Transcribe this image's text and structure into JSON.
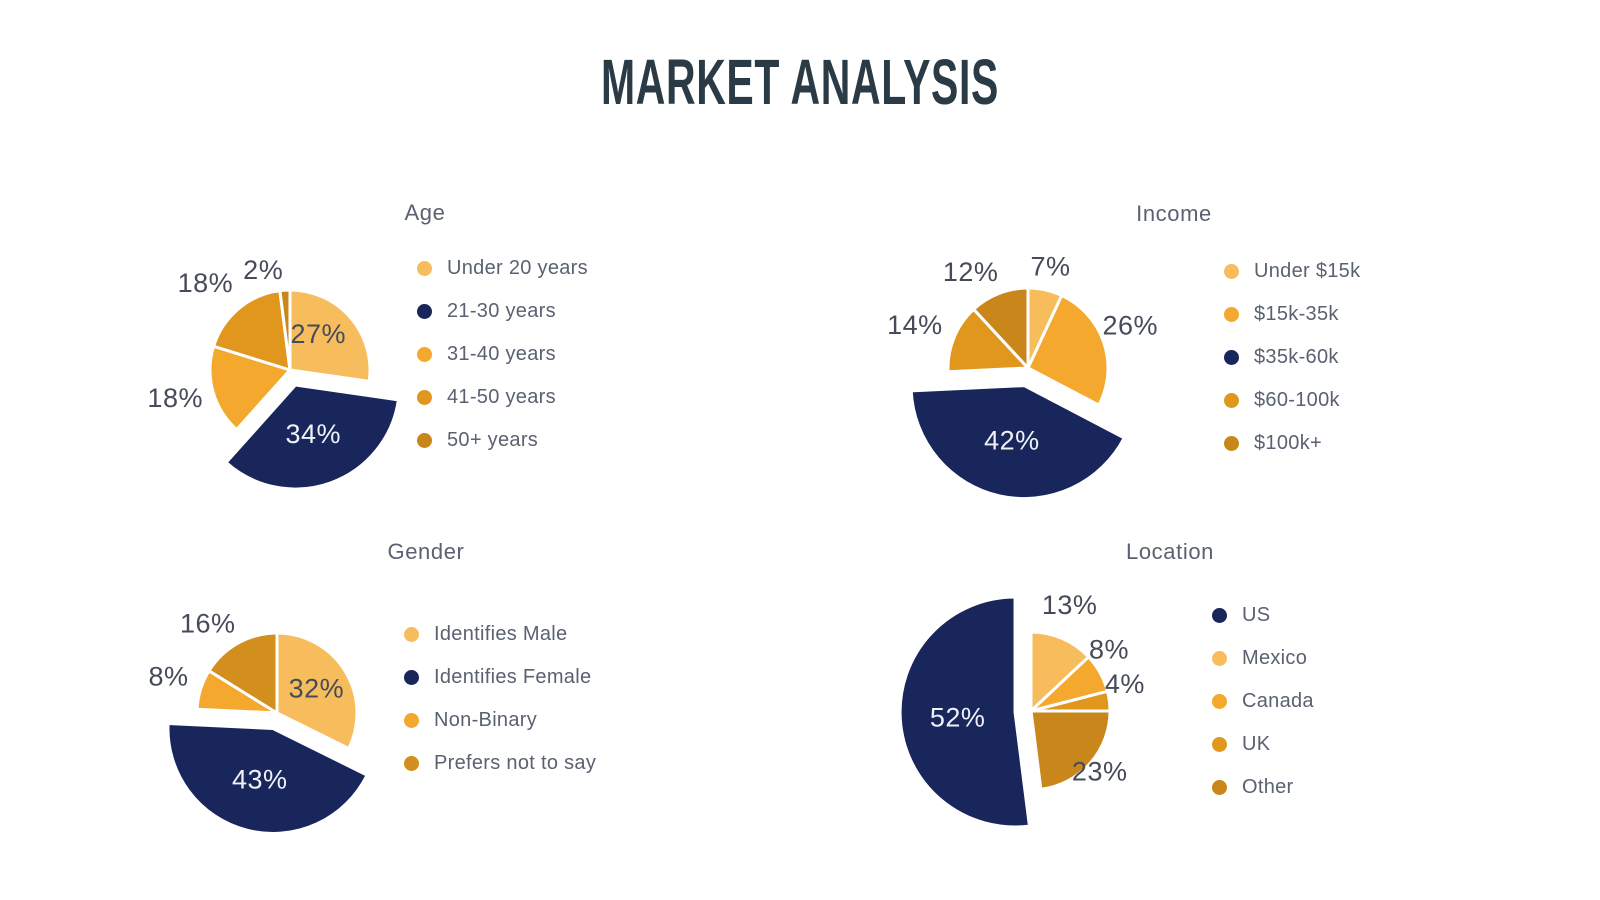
{
  "page_title": "MARKET ANALYSIS",
  "colors": {
    "navy": "#18265C",
    "amber_light": "#F7BD5C",
    "amber": "#F4A82D",
    "gold": "#E1971D",
    "gold_dark": "#C8861B",
    "title_text": "#2B3B46",
    "label_text": "#454B59",
    "muted_text": "#5A6170",
    "background": "#FFFFFF"
  },
  "chart_data": [
    {
      "id": "age",
      "type": "pie",
      "title": "Age",
      "categories": [
        "Under 20 years",
        "21-30 years",
        "31-40 years",
        "41-50 years",
        "50+ years"
      ],
      "values": [
        27,
        34,
        18,
        18,
        2
      ],
      "labels": [
        "27%",
        "34%",
        "18%",
        "18%",
        "2%"
      ],
      "colors": [
        "#F7BD5C",
        "#18265C",
        "#F4A82D",
        "#E1971D",
        "#C8861B"
      ],
      "legend_order": [
        0,
        1,
        2,
        3,
        4
      ],
      "emphasized_index": 1,
      "legend_position": "right",
      "start_angle_deg": 0,
      "direction": "clockwise"
    },
    {
      "id": "income",
      "type": "pie",
      "title": "Income",
      "categories": [
        "Under $15k",
        "$15k-35k",
        "$35k-60k",
        "$60-100k",
        "$100k+"
      ],
      "values": [
        7,
        26,
        42,
        14,
        12
      ],
      "labels": [
        "7%",
        "26%",
        "42%",
        "14%",
        "12%"
      ],
      "colors": [
        "#F7BD5C",
        "#F4A82D",
        "#18265C",
        "#E1971D",
        "#C8861B"
      ],
      "legend_order": [
        0,
        1,
        2,
        3,
        4
      ],
      "emphasized_index": 2,
      "legend_position": "right",
      "start_angle_deg": 0,
      "direction": "clockwise"
    },
    {
      "id": "gender",
      "type": "pie",
      "title": "Gender",
      "categories": [
        "Identifies Male",
        "Identifies Female",
        "Non-Binary",
        "Prefers not to say"
      ],
      "values": [
        32,
        43,
        8,
        16
      ],
      "labels": [
        "32%",
        "43%",
        "8%",
        "16%"
      ],
      "colors": [
        "#F7BD5C",
        "#18265C",
        "#F4A82D",
        "#D28F1D"
      ],
      "legend_order": [
        0,
        1,
        2,
        3
      ],
      "emphasized_index": 1,
      "legend_position": "right",
      "start_angle_deg": 0,
      "direction": "clockwise"
    },
    {
      "id": "location",
      "type": "pie",
      "title": "Location",
      "categories": [
        "Mexico",
        "Canada",
        "UK",
        "Other",
        "US"
      ],
      "values": [
        13,
        8,
        4,
        23,
        52
      ],
      "labels": [
        "13%",
        "8%",
        "4%",
        "23%",
        "52%"
      ],
      "colors": [
        "#F7BD5C",
        "#F4A82D",
        "#E1971D",
        "#C8861B",
        "#18265C"
      ],
      "legend_order": [
        4,
        0,
        1,
        2,
        3
      ],
      "emphasized_index": 4,
      "legend_position": "right",
      "start_angle_deg": 0,
      "direction": "clockwise"
    }
  ]
}
